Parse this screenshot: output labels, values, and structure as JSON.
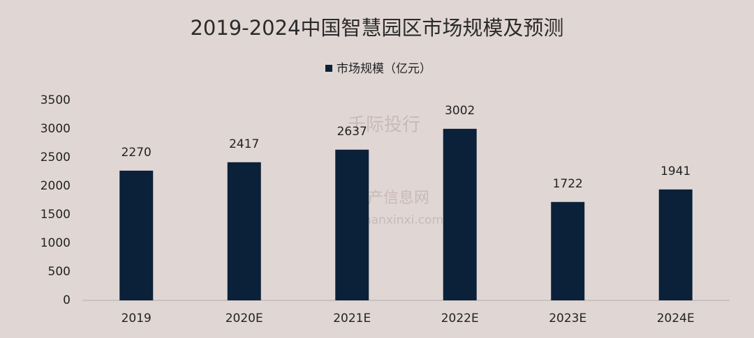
{
  "chart_data": {
    "type": "bar",
    "title": "2019-2024中国智慧园区市场规模及预测",
    "categories": [
      "2019",
      "2020E",
      "2021E",
      "2022E",
      "2023E",
      "2024E"
    ],
    "series": [
      {
        "name": "市场规模（亿元）",
        "color": "#0b2139",
        "values": [
          2270,
          2417,
          2637,
          3002,
          1722,
          1941
        ]
      }
    ],
    "ylim": [
      0,
      3500
    ],
    "yticks": [
      0,
      500,
      1000,
      1500,
      2000,
      2500,
      3000,
      3500
    ],
    "grid": false,
    "legend": "top"
  },
  "watermark": [
    "千际投行",
    "资产信息网",
    "zichanxinxi.com"
  ]
}
